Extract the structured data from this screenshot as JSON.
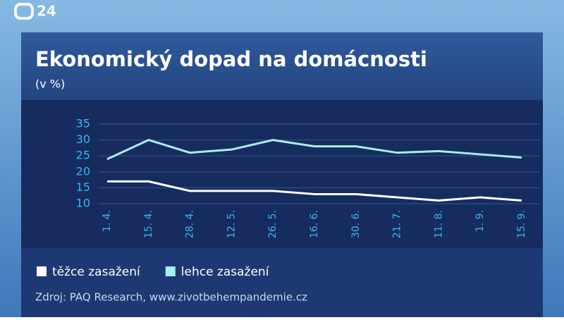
{
  "channel": "24",
  "chart_data": {
    "type": "line",
    "title": "Ekonomický dopad na domácnosti",
    "subtitle": "(v %)",
    "categories": [
      "1. 4.",
      "15. 4.",
      "28. 4.",
      "12. 5.",
      "26. 5.",
      "16. 6.",
      "30. 6.",
      "21. 7.",
      "11. 8.",
      "1. 9.",
      "15. 9."
    ],
    "series": [
      {
        "name": "těžce zasažení",
        "color": "#ffffff",
        "values": [
          17,
          17,
          14,
          14,
          14,
          13,
          13,
          12,
          11,
          12,
          11
        ]
      },
      {
        "name": "lehce zasažení",
        "color": "#a6eef2",
        "values": [
          24,
          30,
          26,
          27,
          30,
          28,
          28,
          26,
          26.5,
          25.5,
          24.5
        ]
      }
    ],
    "ylim": [
      10,
      35
    ],
    "yticks": [
      10,
      15,
      20,
      25,
      30,
      35
    ],
    "grid": true,
    "source": "Zdroj: PAQ Research, www.zivotbehempandemie.cz"
  }
}
